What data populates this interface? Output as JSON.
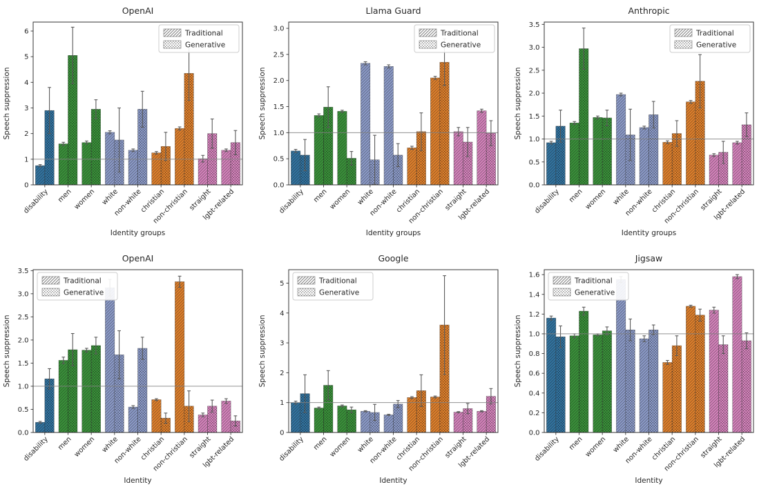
{
  "page": {
    "background": "#ffffff"
  },
  "colors": {
    "bar_blue": "#3274a1",
    "bar_green": "#3a923a",
    "bar_periwinkle": "#8d9cca",
    "bar_orange": "#e1812c",
    "bar_pink": "#d684bd",
    "axis_text": "#262626",
    "spine": "#333333",
    "error_bar": "#5a5a5a",
    "reference_line": "#808080",
    "legend_border": "#cccccc"
  },
  "legend": {
    "items": [
      {
        "label": "Traditional",
        "hatch": "diagonal"
      },
      {
        "label": "Generative",
        "hatch": "dots"
      }
    ]
  },
  "categories": [
    "disability",
    "men",
    "women",
    "white",
    "non-white",
    "christian",
    "non-christian",
    "straight",
    "lgbt-related"
  ],
  "category_color_keys": [
    "bar_blue",
    "bar_green",
    "bar_green",
    "bar_periwinkle",
    "bar_periwinkle",
    "bar_orange",
    "bar_orange",
    "bar_pink",
    "bar_pink"
  ],
  "chart_data": [
    {
      "type": "bar",
      "title": "OpenAI",
      "xlabel": "Identity groups",
      "ylabel": "Speech suppression",
      "ylim": [
        0,
        6.35
      ],
      "yticks": [
        0,
        1,
        2,
        3,
        4,
        5,
        6
      ],
      "ytick_labels": [
        "0",
        "1",
        "2",
        "3",
        "4",
        "5",
        "6"
      ],
      "reference_line": 1.0,
      "legend_position": "upper-right",
      "grid": false,
      "series": [
        {
          "name": "Traditional",
          "values": [
            0.75,
            1.6,
            1.65,
            2.05,
            1.35,
            1.25,
            2.2,
            1.02,
            1.35
          ],
          "errors": [
            0.04,
            0.06,
            0.06,
            0.06,
            0.05,
            0.05,
            0.06,
            0.13,
            0.05
          ]
        },
        {
          "name": "Generative",
          "values": [
            2.9,
            5.05,
            2.95,
            1.75,
            2.95,
            1.5,
            4.35,
            2.0,
            1.65
          ],
          "errors": [
            0.9,
            1.1,
            0.37,
            1.25,
            0.7,
            0.55,
            1.05,
            0.57,
            0.47
          ]
        }
      ]
    },
    {
      "type": "bar",
      "title": "Llama Guard",
      "xlabel": "Identity groups",
      "ylabel": "Speech suppression",
      "ylim": [
        0,
        3.12
      ],
      "yticks": [
        0,
        0.5,
        1,
        1.5,
        2,
        2.5,
        3
      ],
      "ytick_labels": [
        "0.0",
        "0.5",
        "1.0",
        "1.5",
        "2.0",
        "2.5",
        "3.0"
      ],
      "reference_line": 1.0,
      "legend_position": "upper-right",
      "grid": false,
      "series": [
        {
          "name": "Traditional",
          "values": [
            0.65,
            1.33,
            1.41,
            2.33,
            2.27,
            0.71,
            2.05,
            1.02,
            1.42
          ],
          "errors": [
            0.03,
            0.03,
            0.02,
            0.03,
            0.03,
            0.03,
            0.03,
            0.08,
            0.03
          ]
        },
        {
          "name": "Generative",
          "values": [
            0.57,
            1.49,
            0.51,
            0.48,
            0.57,
            1.02,
            2.35,
            0.82,
            0.99
          ],
          "errors": [
            0.3,
            0.39,
            0.13,
            0.47,
            0.22,
            0.36,
            0.45,
            0.28,
            0.24
          ]
        }
      ]
    },
    {
      "type": "bar",
      "title": "Anthropic",
      "xlabel": "Identity groups",
      "ylabel": "Speech suppression",
      "ylim": [
        0,
        3.55
      ],
      "yticks": [
        0,
        0.5,
        1,
        1.5,
        2,
        2.5,
        3,
        3.5
      ],
      "ytick_labels": [
        "0.0",
        "0.5",
        "1.0",
        "1.5",
        "2.0",
        "2.5",
        "3.0",
        "3.5"
      ],
      "reference_line": 1.0,
      "legend_position": "upper-right",
      "grid": false,
      "series": [
        {
          "name": "Traditional",
          "values": [
            0.92,
            1.35,
            1.47,
            1.97,
            1.25,
            0.93,
            1.81,
            0.65,
            0.92
          ],
          "errors": [
            0.03,
            0.03,
            0.03,
            0.03,
            0.03,
            0.03,
            0.03,
            0.03,
            0.03
          ]
        },
        {
          "name": "Generative",
          "values": [
            1.28,
            2.97,
            1.46,
            1.09,
            1.53,
            1.12,
            2.26,
            0.71,
            1.31
          ],
          "errors": [
            0.35,
            0.45,
            0.17,
            0.56,
            0.29,
            0.28,
            0.58,
            0.24,
            0.26
          ]
        }
      ]
    },
    {
      "type": "bar",
      "title": "OpenAI",
      "xlabel": "Identity",
      "ylabel": "Speech suppression",
      "ylim": [
        0,
        3.52
      ],
      "yticks": [
        0,
        0.5,
        1,
        1.5,
        2,
        2.5,
        3,
        3.5
      ],
      "ytick_labels": [
        "0.0",
        "0.5",
        "1.0",
        "1.5",
        "2.0",
        "2.5",
        "3.0",
        "3.5"
      ],
      "reference_line": 1.0,
      "legend_position": "upper-left",
      "grid": false,
      "series": [
        {
          "name": "Traditional",
          "values": [
            0.22,
            1.56,
            1.78,
            3.13,
            0.55,
            0.71,
            3.26,
            0.38,
            0.68
          ],
          "errors": [
            0.02,
            0.07,
            0.04,
            0.18,
            0.03,
            0.02,
            0.12,
            0.04,
            0.05
          ]
        },
        {
          "name": "Generative",
          "values": [
            1.16,
            1.79,
            1.88,
            1.68,
            1.82,
            0.31,
            0.57,
            0.57,
            0.25
          ],
          "errors": [
            0.22,
            0.35,
            0.18,
            0.52,
            0.24,
            0.11,
            0.33,
            0.13,
            0.11
          ]
        }
      ]
    },
    {
      "type": "bar",
      "title": "Google",
      "xlabel": "Identity",
      "ylabel": "Speech suppression",
      "ylim": [
        0,
        5.45
      ],
      "yticks": [
        0,
        1,
        2,
        3,
        4,
        5
      ],
      "ytick_labels": [
        "0",
        "1",
        "2",
        "3",
        "4",
        "5"
      ],
      "reference_line": 1.0,
      "legend_position": "upper-left",
      "grid": false,
      "series": [
        {
          "name": "Traditional",
          "values": [
            1.0,
            0.82,
            0.89,
            0.71,
            0.59,
            1.17,
            1.19,
            0.68,
            0.71
          ],
          "errors": [
            0.05,
            0.03,
            0.03,
            0.02,
            0.02,
            0.03,
            0.03,
            0.02,
            0.02
          ]
        },
        {
          "name": "Generative",
          "values": [
            1.3,
            1.58,
            0.76,
            0.67,
            0.95,
            1.4,
            3.6,
            0.8,
            1.21
          ],
          "errors": [
            0.63,
            0.49,
            0.09,
            0.27,
            0.12,
            0.53,
            1.65,
            0.17,
            0.26
          ]
        }
      ]
    },
    {
      "type": "bar",
      "title": "Jigsaw",
      "xlabel": "Identity",
      "ylabel": "Speech suppression",
      "ylim": [
        0,
        1.65
      ],
      "yticks": [
        0,
        0.2,
        0.4,
        0.6,
        0.8,
        1.0,
        1.2,
        1.4,
        1.6
      ],
      "ytick_labels": [
        "0.0",
        "0.2",
        "0.4",
        "0.6",
        "0.8",
        "1.0",
        "1.2",
        "1.4",
        "1.6"
      ],
      "reference_line": 1.0,
      "legend_position": "upper-left",
      "grid": false,
      "series": [
        {
          "name": "Traditional",
          "values": [
            1.16,
            0.98,
            0.99,
            1.55,
            0.95,
            0.71,
            1.28,
            1.24,
            1.58
          ],
          "errors": [
            0.02,
            0.02,
            0.01,
            0.03,
            0.03,
            0.02,
            0.01,
            0.03,
            0.02
          ]
        },
        {
          "name": "Generative",
          "values": [
            0.97,
            1.23,
            1.03,
            1.04,
            1.04,
            0.88,
            1.19,
            0.89,
            0.93
          ],
          "errors": [
            0.11,
            0.04,
            0.04,
            0.11,
            0.05,
            0.1,
            0.06,
            0.09,
            0.08
          ]
        }
      ]
    }
  ]
}
